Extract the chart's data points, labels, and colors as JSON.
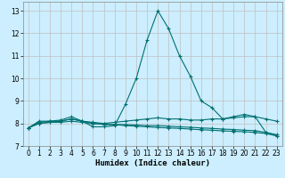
{
  "title": "",
  "xlabel": "Humidex (Indice chaleur)",
  "bg_color": "#cceeff",
  "grid_color": "#c0c0c0",
  "line_color": "#007070",
  "xlim": [
    -0.5,
    23.5
  ],
  "ylim": [
    7.0,
    13.4
  ],
  "yticks": [
    7,
    8,
    9,
    10,
    11,
    12,
    13
  ],
  "xticks": [
    0,
    1,
    2,
    3,
    4,
    5,
    6,
    7,
    8,
    9,
    10,
    11,
    12,
    13,
    14,
    15,
    16,
    17,
    18,
    19,
    20,
    21,
    22,
    23
  ],
  "line1_x": [
    0,
    1,
    2,
    3,
    4,
    5,
    6,
    7,
    8,
    9,
    10,
    11,
    12,
    13,
    14,
    15,
    16,
    17,
    18,
    19,
    20,
    21,
    22,
    23
  ],
  "line1_y": [
    7.8,
    8.1,
    8.1,
    8.15,
    8.3,
    8.1,
    7.85,
    7.85,
    7.9,
    8.85,
    10.0,
    11.7,
    13.0,
    12.2,
    11.0,
    10.1,
    9.0,
    8.7,
    8.2,
    8.3,
    8.4,
    8.3,
    7.6,
    7.45
  ],
  "line2_x": [
    0,
    1,
    2,
    3,
    4,
    5,
    6,
    7,
    8,
    9,
    10,
    11,
    12,
    13,
    14,
    15,
    16,
    17,
    18,
    19,
    20,
    21,
    22,
    23
  ],
  "line2_y": [
    7.8,
    8.05,
    8.1,
    8.1,
    8.2,
    8.1,
    8.05,
    8.0,
    8.05,
    8.1,
    8.15,
    8.2,
    8.25,
    8.2,
    8.2,
    8.15,
    8.15,
    8.2,
    8.2,
    8.25,
    8.3,
    8.3,
    8.2,
    8.1
  ],
  "line3_x": [
    0,
    1,
    2,
    3,
    4,
    5,
    6,
    7,
    8,
    9,
    10,
    11,
    12,
    13,
    14,
    15,
    16,
    17,
    18,
    19,
    20,
    21,
    22,
    23
  ],
  "line3_y": [
    7.8,
    8.0,
    8.05,
    8.05,
    8.1,
    8.05,
    8.0,
    7.95,
    7.95,
    7.9,
    7.88,
    7.85,
    7.82,
    7.8,
    7.78,
    7.75,
    7.72,
    7.7,
    7.67,
    7.65,
    7.63,
    7.6,
    7.55,
    7.45
  ],
  "line4_x": [
    0,
    1,
    2,
    3,
    4,
    5,
    6,
    7,
    8,
    9,
    10,
    11,
    12,
    13,
    14,
    15,
    16,
    17,
    18,
    19,
    20,
    21,
    22,
    23
  ],
  "line4_y": [
    7.8,
    8.0,
    8.05,
    8.1,
    8.2,
    8.1,
    8.0,
    7.98,
    7.95,
    7.95,
    7.93,
    7.9,
    7.9,
    7.88,
    7.85,
    7.83,
    7.8,
    7.78,
    7.75,
    7.73,
    7.7,
    7.68,
    7.6,
    7.5
  ],
  "tick_fontsize": 5.5,
  "xlabel_fontsize": 6.5
}
